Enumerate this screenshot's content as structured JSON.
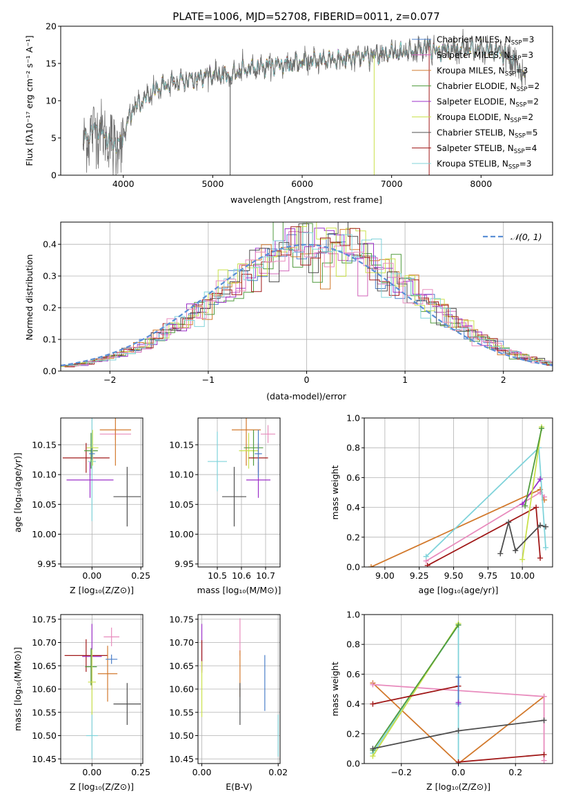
{
  "colors": {
    "chabrier_miles": "#4a7ec9",
    "salpeter_miles": "#d062b8",
    "kroupa_miles": "#d2792c",
    "chabrier_elodie": "#4f9a3d",
    "salpeter_elodie": "#9b2fc8",
    "kroupa_elodie": "#c9e04a",
    "chabrier_stelib": "#4d4d4d",
    "salpeter_stelib": "#a01818",
    "kroupa_stelib": "#7fd3da",
    "normal": "#5b8fd6",
    "extra_pink": "#e88bbd"
  },
  "chart_data": [
    {
      "id": "spectrum",
      "type": "line",
      "title": "PLATE=1006, MJD=52708, FIBERID=0011, z=0.077",
      "xlabel": "wavelength [Angstrom, rest frame]",
      "ylabel": "Flux [fλ10⁻¹⁷ erg cm⁻² s⁻¹ A⁻¹]",
      "xlim": [
        3300,
        8800
      ],
      "ylim": [
        0,
        20
      ],
      "xticks": [
        4000,
        5000,
        6000,
        7000,
        8000
      ],
      "yticks": [
        0,
        5,
        10,
        15,
        20
      ],
      "legend_position": "right",
      "legend": [
        {
          "label": "Chabrier MILES, N_SSP=3",
          "color": "#4a7ec9"
        },
        {
          "label": "Salpeter MILES, N_SSP=3",
          "color": "#d062b8"
        },
        {
          "label": "Kroupa MILES, N_SSP=3",
          "color": "#d2792c"
        },
        {
          "label": "Chabrier ELODIE, N_SSP=2",
          "color": "#4f9a3d"
        },
        {
          "label": "Salpeter ELODIE, N_SSP=2",
          "color": "#9b2fc8"
        },
        {
          "label": "Kroupa ELODIE, N_SSP=2",
          "color": "#c9e04a"
        },
        {
          "label": "Chabrier STELIB, N_SSP=5",
          "color": "#4d4d4d"
        },
        {
          "label": "Salpeter STELIB, N_SSP=4",
          "color": "#a01818"
        },
        {
          "label": "Kroupa STELIB, N_SSP=3",
          "color": "#7fd3da"
        }
      ],
      "continuum": [
        [
          3550,
          4.5
        ],
        [
          3700,
          6.5
        ],
        [
          3800,
          5.2
        ],
        [
          3900,
          4.0
        ],
        [
          3980,
          4.5
        ],
        [
          4100,
          8.8
        ],
        [
          4200,
          9.8
        ],
        [
          4300,
          10.8
        ],
        [
          4400,
          11.8
        ],
        [
          4600,
          12.5
        ],
        [
          4800,
          13.0
        ],
        [
          5000,
          13.6
        ],
        [
          5150,
          13.3
        ],
        [
          5200,
          13.2
        ],
        [
          5300,
          14.0
        ],
        [
          5500,
          14.5
        ],
        [
          5700,
          14.8
        ],
        [
          5900,
          15.0
        ],
        [
          6100,
          15.3
        ],
        [
          6300,
          15.5
        ],
        [
          6500,
          15.6
        ],
        [
          6700,
          16.0
        ],
        [
          6900,
          16.2
        ],
        [
          7100,
          16.5
        ],
        [
          7300,
          16.8
        ],
        [
          7400,
          17.4
        ],
        [
          7500,
          16.6
        ],
        [
          7600,
          16.8
        ],
        [
          7800,
          17.0
        ],
        [
          8000,
          16.8
        ],
        [
          8200,
          16.6
        ],
        [
          8400,
          15.0
        ],
        [
          8500,
          12.5
        ]
      ],
      "spikes": [
        [
          5195,
          0
        ],
        [
          6805,
          0
        ],
        [
          7420,
          0
        ]
      ]
    },
    {
      "id": "residuals",
      "type": "histogram",
      "xlabel": "(data-model)/error",
      "ylabel": "Normed distribution",
      "xlim": [
        -2.5,
        2.5
      ],
      "ylim": [
        0,
        0.47
      ],
      "xticks": [
        -2,
        -1,
        0,
        1,
        2
      ],
      "yticks": [
        0.0,
        0.1,
        0.2,
        0.3,
        0.4
      ],
      "bin_width": 0.1,
      "legend": [
        {
          "label": "𝒩(0, 1)",
          "color": "#5b8fd6"
        }
      ],
      "legend_position": "top-right",
      "normal": {
        "mean": 0,
        "sigma": 1
      }
    },
    {
      "id": "z_age",
      "type": "errorbar",
      "xlabel": "Z [log₁₀(Z/Z⊙)]",
      "ylabel": "age  [log₁₀(age/yr)]",
      "xlim": [
        -0.16,
        0.26
      ],
      "ylim": [
        9.945,
        10.195
      ],
      "xticks": [
        0.0,
        0.25
      ],
      "yticks": [
        9.95,
        10.0,
        10.05,
        10.1,
        10.15
      ],
      "points": [
        {
          "x": 0.0,
          "y": 10.122,
          "ex": 0.02,
          "ey": 0.1,
          "color": "#7fd3da"
        },
        {
          "x": -0.03,
          "y": 10.128,
          "ex": 0.12,
          "ey": 0.025,
          "color": "#a01818"
        },
        {
          "x": -0.01,
          "y": 10.091,
          "ex": 0.12,
          "ey": 0.03,
          "color": "#9b2fc8"
        },
        {
          "x": -0.005,
          "y": 10.14,
          "ex": 0.035,
          "ey": 0.03,
          "color": "#4f9a3d"
        },
        {
          "x": 0.003,
          "y": 10.145,
          "ex": 0.03,
          "ey": 0.03,
          "color": "#c9e04a"
        },
        {
          "x": 0.12,
          "y": 10.168,
          "ex": 0.08,
          "ey": 0.01,
          "color": "#e88bbd"
        },
        {
          "x": 0.12,
          "y": 10.175,
          "ex": 0.08,
          "ey": 0.06,
          "color": "#d2792c"
        },
        {
          "x": 0.0,
          "y": 10.135,
          "ex": 0.015,
          "ey": 0.01,
          "color": "#4a7ec9"
        },
        {
          "x": 0.18,
          "y": 10.063,
          "ex": 0.07,
          "ey": 0.05,
          "color": "#4d4d4d"
        }
      ]
    },
    {
      "id": "mass_age",
      "type": "errorbar",
      "xlabel": "mass [log₁₀(M/M⊙)]",
      "ylabel": "",
      "xlim": [
        10.42,
        10.76
      ],
      "ylim": [
        9.945,
        10.195
      ],
      "xticks": [
        10.5,
        10.6,
        10.7
      ],
      "yticks": [
        9.95,
        10.0,
        10.05,
        10.1,
        10.15
      ],
      "points": [
        {
          "x": 10.5,
          "y": 10.122,
          "ex": 0.04,
          "ey": 0.05,
          "color": "#7fd3da"
        },
        {
          "x": 10.57,
          "y": 10.063,
          "ex": 0.05,
          "ey": 0.05,
          "color": "#4d4d4d"
        },
        {
          "x": 10.62,
          "y": 10.175,
          "ex": 0.06,
          "ey": 0.06,
          "color": "#d2792c"
        },
        {
          "x": 10.63,
          "y": 10.14,
          "ex": 0.04,
          "ey": 0.03,
          "color": "#c9e04a"
        },
        {
          "x": 10.65,
          "y": 10.145,
          "ex": 0.04,
          "ey": 0.03,
          "color": "#4f9a3d"
        },
        {
          "x": 10.67,
          "y": 10.128,
          "ex": 0.04,
          "ey": 0.025,
          "color": "#a01818"
        },
        {
          "x": 10.67,
          "y": 10.091,
          "ex": 0.05,
          "ey": 0.03,
          "color": "#9b2fc8"
        },
        {
          "x": 10.71,
          "y": 10.168,
          "ex": 0.03,
          "ey": 0.015,
          "color": "#e88bbd"
        },
        {
          "x": 10.67,
          "y": 10.135,
          "ex": 0.015,
          "ey": 0.04,
          "color": "#4a7ec9"
        }
      ]
    },
    {
      "id": "age_weight",
      "type": "line",
      "xlabel": "age  [log₁₀(age/yr)]",
      "ylabel": "mass weight",
      "xlim": [
        8.85,
        10.22
      ],
      "ylim": [
        0,
        1
      ],
      "xticks": [
        9.0,
        9.25,
        9.5,
        9.75,
        10.0
      ],
      "yticks": [
        0.0,
        0.2,
        0.4,
        0.6,
        0.8,
        1.0
      ],
      "series": [
        {
          "color": "#d2792c",
          "points": [
            [
              8.9,
              0.0
            ],
            [
              10.13,
              0.52
            ],
            [
              10.16,
              0.45
            ]
          ]
        },
        {
          "color": "#e88bbd",
          "points": [
            [
              9.3,
              0.04
            ],
            [
              10.13,
              0.5
            ],
            [
              10.16,
              0.47
            ]
          ]
        },
        {
          "color": "#7fd3da",
          "points": [
            [
              9.3,
              0.07
            ],
            [
              10.12,
              0.8
            ],
            [
              10.17,
              0.13
            ]
          ]
        },
        {
          "color": "#a01818",
          "points": [
            [
              9.31,
              0.01
            ],
            [
              10.1,
              0.4
            ],
            [
              10.13,
              0.06
            ]
          ]
        },
        {
          "color": "#9b2fc8",
          "points": [
            [
              10.0,
              0.42
            ],
            [
              10.13,
              0.59
            ]
          ]
        },
        {
          "color": "#c9e04a",
          "points": [
            [
              10.0,
              0.05
            ],
            [
              10.14,
              0.94
            ]
          ]
        },
        {
          "color": "#4f9a3d",
          "points": [
            [
              10.02,
              0.41
            ],
            [
              10.14,
              0.93
            ]
          ]
        },
        {
          "color": "#4d4d4d",
          "points": [
            [
              9.84,
              0.09
            ],
            [
              9.9,
              0.3
            ],
            [
              9.95,
              0.11
            ],
            [
              10.13,
              0.28
            ],
            [
              10.17,
              0.27
            ]
          ]
        }
      ]
    },
    {
      "id": "z_mass",
      "type": "errorbar",
      "xlabel": "Z [log₁₀(Z/Z⊙)]",
      "ylabel": "mass [log₁₀(M/M⊙)]",
      "xlim": [
        -0.16,
        0.26
      ],
      "ylim": [
        10.44,
        10.76
      ],
      "xticks": [
        0.0,
        0.25
      ],
      "yticks": [
        10.45,
        10.5,
        10.55,
        10.6,
        10.65,
        10.7,
        10.75
      ],
      "points": [
        {
          "x": 0.0,
          "y": 10.5,
          "ex": 0.03,
          "ey": 0.05,
          "color": "#7fd3da"
        },
        {
          "x": -0.03,
          "y": 10.672,
          "ex": 0.11,
          "ey": 0.035,
          "color": "#a01818"
        },
        {
          "x": 0.0,
          "y": 10.67,
          "ex": 0.05,
          "ey": 0.07,
          "color": "#9b2fc8"
        },
        {
          "x": -0.005,
          "y": 10.648,
          "ex": 0.03,
          "ey": 0.04,
          "color": "#4f9a3d"
        },
        {
          "x": 0.0,
          "y": 10.615,
          "ex": 0.02,
          "ey": 0.07,
          "color": "#c9e04a"
        },
        {
          "x": 0.1,
          "y": 10.712,
          "ex": 0.04,
          "ey": 0.02,
          "color": "#e88bbd"
        },
        {
          "x": 0.08,
          "y": 10.633,
          "ex": 0.05,
          "ey": 0.06,
          "color": "#d2792c"
        },
        {
          "x": 0.1,
          "y": 10.664,
          "ex": 0.03,
          "ey": 0.01,
          "color": "#4a7ec9"
        },
        {
          "x": 0.18,
          "y": 10.568,
          "ex": 0.07,
          "ey": 0.045,
          "color": "#4d4d4d"
        }
      ]
    },
    {
      "id": "ebv_mass",
      "type": "errorbar",
      "xlabel": "E(B-V)",
      "ylabel": "",
      "xlim": [
        -0.001,
        0.0205
      ],
      "ylim": [
        10.44,
        10.76
      ],
      "xticks": [
        0.0,
        0.02
      ],
      "yticks": [
        10.45,
        10.5,
        10.55,
        10.6,
        10.65,
        10.7,
        10.75
      ],
      "points": [
        {
          "x": 0.0,
          "y": 10.69,
          "ex": 0,
          "ey": 0.05,
          "color": "#9b2fc8"
        },
        {
          "x": 0.0,
          "y": 10.67,
          "ex": 0,
          "ey": 0.035,
          "color": "#a01818"
        },
        {
          "x": 0.0,
          "y": 10.6,
          "ex": 0,
          "ey": 0.06,
          "color": "#c9e04a"
        },
        {
          "x": 0.01,
          "y": 10.712,
          "ex": 0,
          "ey": 0.04,
          "color": "#e88bbd"
        },
        {
          "x": 0.01,
          "y": 10.633,
          "ex": 0,
          "ey": 0.05,
          "color": "#d2792c"
        },
        {
          "x": 0.01,
          "y": 10.568,
          "ex": 0,
          "ey": 0.045,
          "color": "#4d4d4d"
        },
        {
          "x": 0.0165,
          "y": 10.613,
          "ex": 0,
          "ey": 0.06,
          "color": "#4a7ec9"
        },
        {
          "x": 0.02,
          "y": 10.5,
          "ex": 0,
          "ey": 0.045,
          "color": "#7fd3da"
        }
      ]
    },
    {
      "id": "z_weight",
      "type": "line",
      "xlabel": "Z [log₁₀(Z/Z⊙)]",
      "ylabel": "mass weight",
      "xlim": [
        -0.33,
        0.33
      ],
      "ylim": [
        0,
        1
      ],
      "xticks": [
        -0.2,
        0.0,
        0.2
      ],
      "yticks": [
        0.0,
        0.2,
        0.4,
        0.6,
        0.8,
        1.0
      ],
      "series": [
        {
          "color": "#d2792c",
          "points": [
            [
              -0.3,
              0.54
            ],
            [
              0.0,
              0.0
            ],
            [
              0.3,
              0.45
            ]
          ]
        },
        {
          "color": "#e88bbd",
          "points": [
            [
              -0.3,
              0.53
            ],
            [
              0.3,
              0.45
            ],
            [
              0.3,
              0.02
            ]
          ]
        },
        {
          "color": "#7fd3da",
          "points": [
            [
              -0.3,
              0.07
            ],
            [
              0.0,
              0.93
            ],
            [
              0.0,
              0.0
            ]
          ]
        },
        {
          "color": "#c9e04a",
          "points": [
            [
              -0.3,
              0.05
            ],
            [
              0.0,
              0.94
            ]
          ]
        },
        {
          "color": "#4f9a3d",
          "points": [
            [
              -0.3,
              0.09
            ],
            [
              0.0,
              0.93
            ]
          ]
        },
        {
          "color": "#4d4d4d",
          "points": [
            [
              -0.3,
              0.1
            ],
            [
              0.0,
              0.22
            ],
            [
              0.3,
              0.29
            ]
          ]
        },
        {
          "color": "#a01818",
          "points": [
            [
              -0.3,
              0.4
            ],
            [
              0.0,
              0.52
            ]
          ]
        },
        {
          "color": "#a01818",
          "points": [
            [
              0.0,
              0.01
            ],
            [
              0.3,
              0.06
            ]
          ]
        },
        {
          "color": "#4a7ec9",
          "points": [
            [
              0.0,
              0.58
            ],
            [
              0.0,
              0.4
            ]
          ]
        },
        {
          "color": "#9b2fc8",
          "points": [
            [
              0.0,
              0.41
            ]
          ]
        }
      ]
    }
  ]
}
